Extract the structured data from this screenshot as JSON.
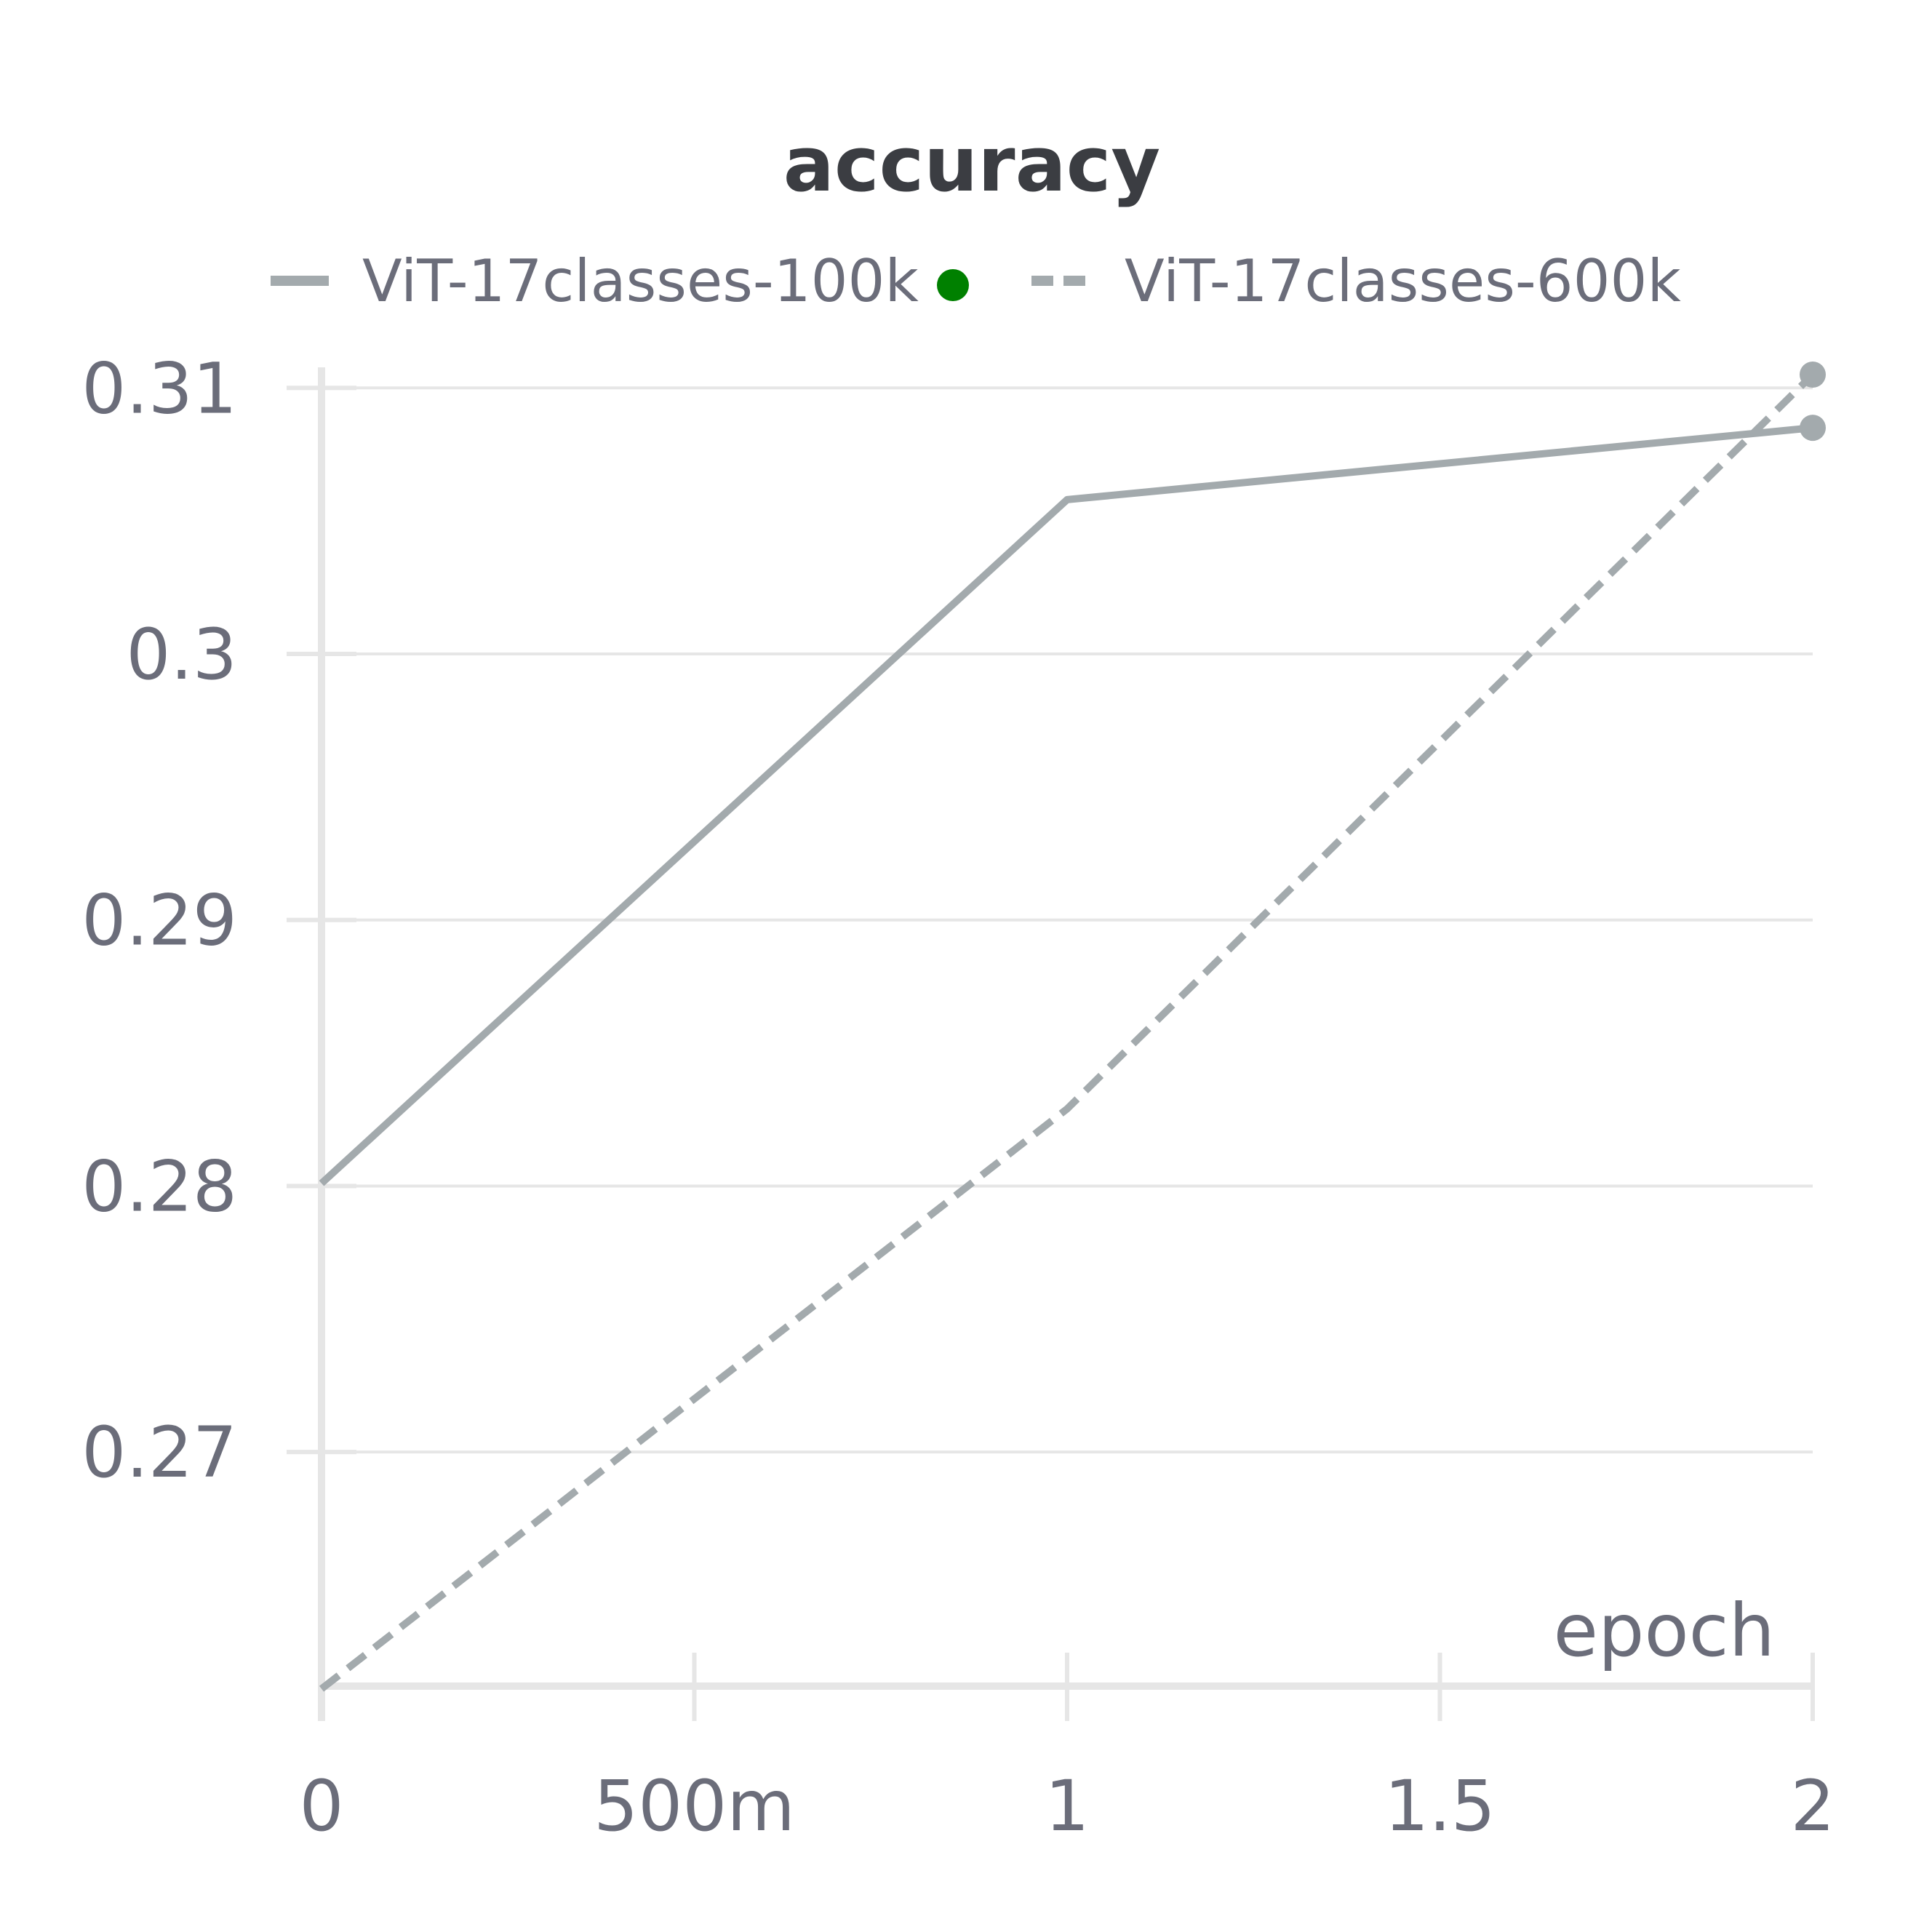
{
  "chart_data": {
    "type": "line",
    "title": "accuracy",
    "xlabel": "epoch",
    "ylabel": "",
    "x": [
      0,
      1,
      2
    ],
    "xlim": [
      0,
      2
    ],
    "ylim": [
      0.2612,
      0.3105
    ],
    "x_ticks": [
      {
        "value": 0,
        "label": "0"
      },
      {
        "value": 0.5,
        "label": "500m"
      },
      {
        "value": 1,
        "label": "1"
      },
      {
        "value": 1.5,
        "label": "1.5"
      },
      {
        "value": 2,
        "label": "2"
      }
    ],
    "y_ticks": [
      {
        "value": 0.27,
        "label": "0.27"
      },
      {
        "value": 0.28,
        "label": "0.28"
      },
      {
        "value": 0.29,
        "label": "0.29"
      },
      {
        "value": 0.3,
        "label": "0.3"
      },
      {
        "value": 0.31,
        "label": "0.31"
      }
    ],
    "grid": true,
    "legend_position": "top",
    "series": [
      {
        "name": "ViT-17classes-100k",
        "values": [
          0.2801,
          0.3058,
          0.3085
        ],
        "style": "solid",
        "color": "#a3aaad",
        "marker_color": "#008000"
      },
      {
        "name": "ViT-17classes-600k",
        "values": [
          0.2611,
          0.2829,
          0.3105
        ],
        "style": "dashed",
        "color": "#a3aaad"
      }
    ]
  }
}
